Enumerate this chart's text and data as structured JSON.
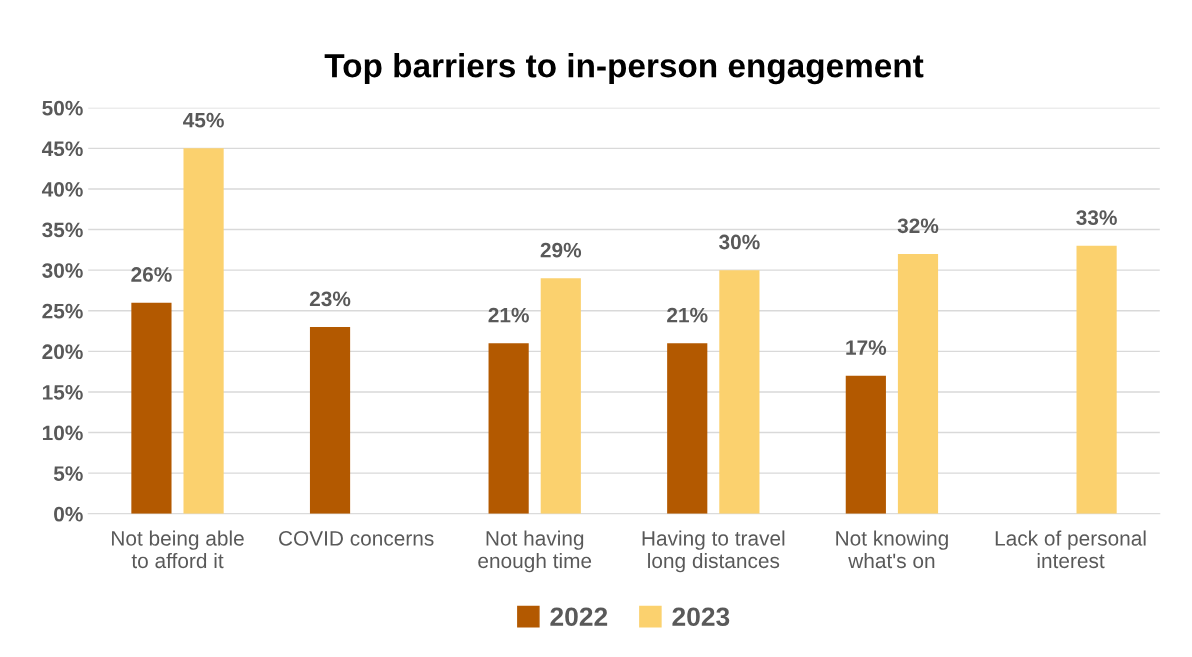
{
  "chart_data": {
    "type": "bar",
    "title": "Top barriers to in-person engagement",
    "categories": [
      "Not being able\nto afford it",
      "COVID concerns",
      "Not having\nenough time",
      "Having to travel\nlong distances",
      "Not knowing\nwhat's on",
      "Lack of personal\ninterest"
    ],
    "series": [
      {
        "name": "2022",
        "color": "#b35900",
        "values": [
          26,
          23,
          21,
          21,
          17,
          null
        ],
        "value_labels": [
          "26%",
          "23%",
          "21%",
          "21%",
          "17%",
          null
        ]
      },
      {
        "name": "2023",
        "color": "#fbd16e",
        "values": [
          45,
          null,
          29,
          30,
          32,
          33
        ],
        "value_labels": [
          "45%",
          null,
          "29%",
          "30%",
          "32%",
          "33%"
        ]
      }
    ],
    "ylim": [
      0,
      50
    ],
    "yticks": [
      {
        "value": 0,
        "label": "0%"
      },
      {
        "value": 5,
        "label": "5%"
      },
      {
        "value": 10,
        "label": "10%"
      },
      {
        "value": 15,
        "label": "15%"
      },
      {
        "value": 20,
        "label": "20%"
      },
      {
        "value": 25,
        "label": "25%"
      },
      {
        "value": 30,
        "label": "30%"
      },
      {
        "value": 35,
        "label": "35%"
      },
      {
        "value": 40,
        "label": "40%"
      },
      {
        "value": 45,
        "label": "45%"
      },
      {
        "value": 50,
        "label": "50%"
      }
    ],
    "grid": "y",
    "legend": "bottom"
  }
}
